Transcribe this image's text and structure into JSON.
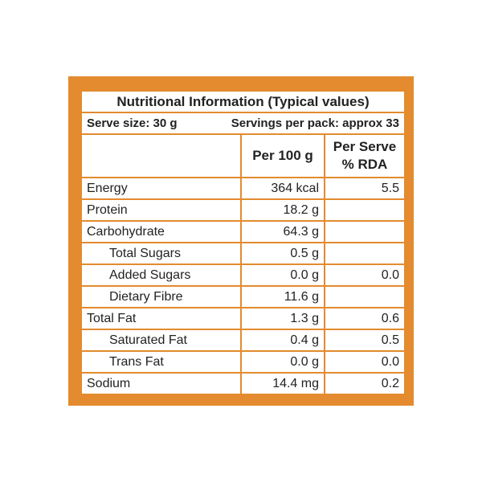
{
  "title": "Nutritional Information (Typical values)",
  "serve_size": "Serve size: 30 g",
  "servings_per_pack": "Servings per pack: approx 33",
  "columns": [
    "Per 100 g",
    "Per Serve % RDA"
  ],
  "rows": [
    {
      "label": "Energy",
      "per_100g": "364 kcal",
      "rda": "5.5",
      "indent": false
    },
    {
      "label": "Protein",
      "per_100g": "18.2 g",
      "rda": null,
      "indent": false
    },
    {
      "label": "Carbohydrate",
      "per_100g": "64.3 g",
      "rda": null,
      "indent": false
    },
    {
      "label": "Total Sugars",
      "per_100g": "0.5 g",
      "rda": null,
      "indent": true
    },
    {
      "label": "Added Sugars",
      "per_100g": "0.0 g",
      "rda": "0.0",
      "indent": true
    },
    {
      "label": "Dietary Fibre",
      "per_100g": "11.6 g",
      "rda": null,
      "indent": true
    },
    {
      "label": "Total Fat",
      "per_100g": "1.3 g",
      "rda": "0.6",
      "indent": false
    },
    {
      "label": "Saturated Fat",
      "per_100g": "0.4 g",
      "rda": "0.5",
      "indent": true
    },
    {
      "label": "Trans Fat",
      "per_100g": "0.0 g",
      "rda": "0.0",
      "indent": true
    },
    {
      "label": "Sodium",
      "per_100g": "14.4 mg",
      "rda": "0.2",
      "indent": false
    }
  ]
}
